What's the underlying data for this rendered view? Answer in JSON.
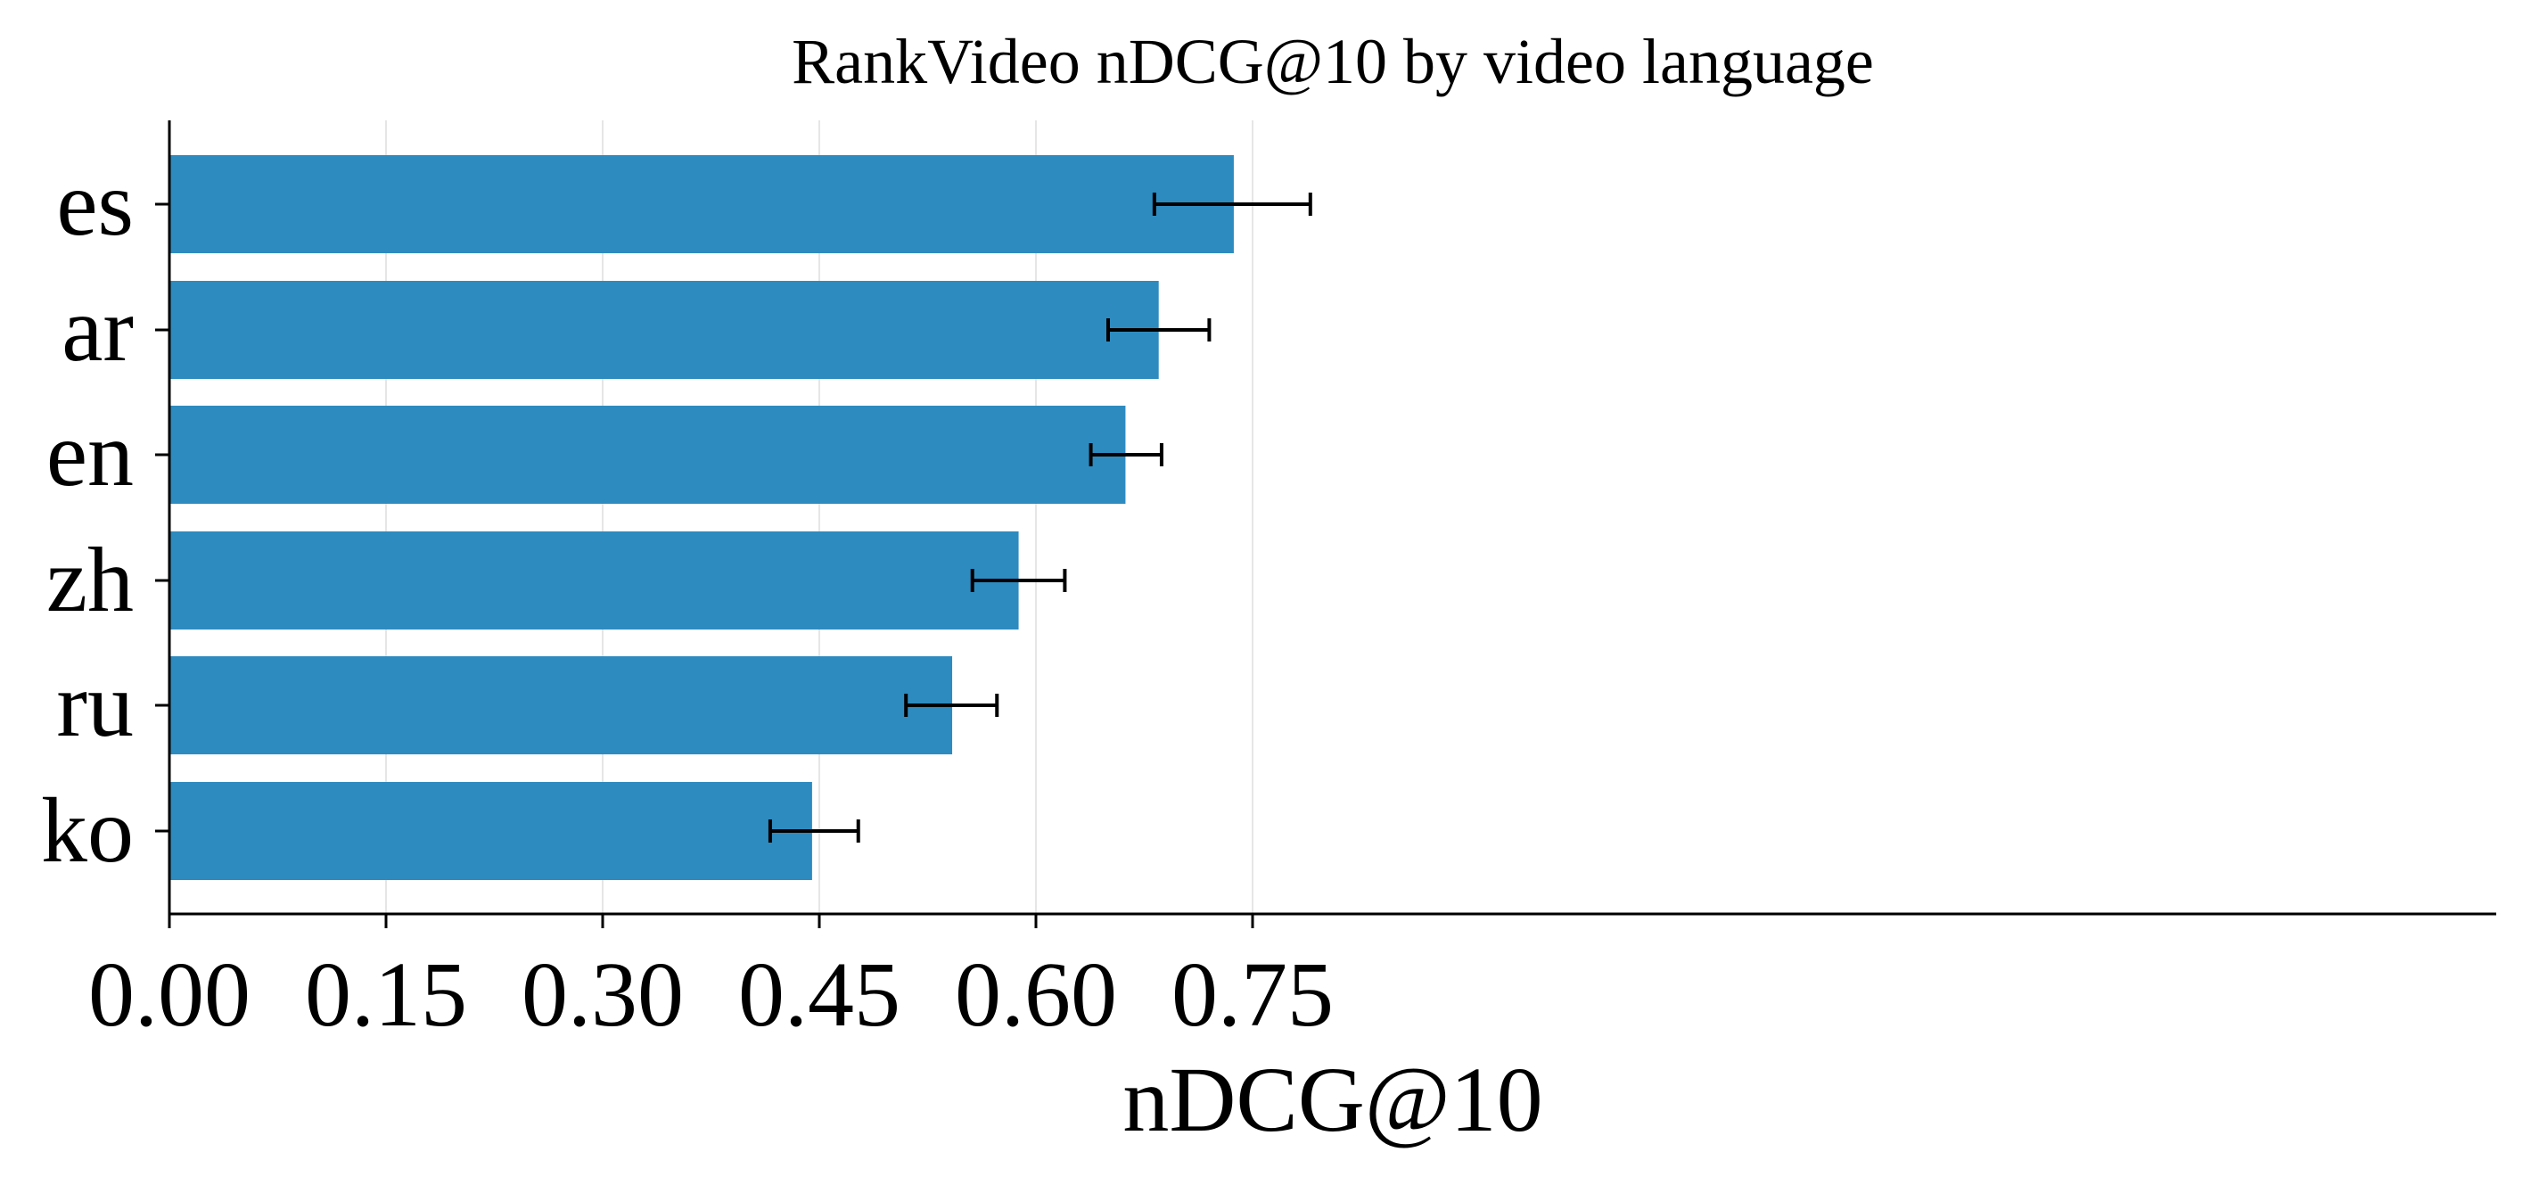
{
  "chart_data": {
    "type": "bar",
    "orientation": "horizontal",
    "title": "RankVideo nDCG@10 by video language",
    "xlabel": "nDCG@10",
    "ylabel": "",
    "categories": [
      "es",
      "ar",
      "en",
      "zh",
      "ru",
      "ko"
    ],
    "values": [
      0.737,
      0.685,
      0.662,
      0.588,
      0.542,
      0.445
    ],
    "error_low": [
      0.682,
      0.65,
      0.638,
      0.556,
      0.51,
      0.416
    ],
    "error_high": [
      0.79,
      0.72,
      0.687,
      0.62,
      0.573,
      0.477
    ],
    "xlim": [
      0.0,
      0.83
    ],
    "xticks": [
      "0.00",
      "0.15",
      "0.30",
      "0.45",
      "0.60",
      "0.75"
    ],
    "grid": "vertical, light",
    "legend": "none",
    "colors": {
      "bar": "#2e8bc0",
      "error_bar": "#000000",
      "grid": "#e6e6e6",
      "axis": "#000000"
    }
  }
}
